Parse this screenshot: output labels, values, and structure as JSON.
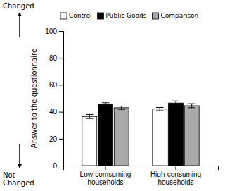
{
  "chart_data": {
    "type": "bar",
    "categories": [
      "Low-comsuming\nhouseholds",
      "High-consuming\nhouseholds"
    ],
    "series": [
      {
        "name": "Control",
        "color": "white",
        "values": [
          36.5,
          42.0
        ],
        "errors": [
          1.5,
          1.2
        ]
      },
      {
        "name": "Public Goods",
        "color": "black",
        "values": [
          45.5,
          46.5
        ],
        "errors": [
          1.2,
          1.5
        ]
      },
      {
        "name": "Comparison",
        "color": "#aaaaaa",
        "values": [
          43.0,
          44.5
        ],
        "errors": [
          1.2,
          1.5
        ]
      }
    ],
    "ylabel": "Answer to the questionnaire",
    "ylim": [
      0,
      100
    ],
    "yticks": [
      0,
      20,
      40,
      60,
      80,
      100
    ],
    "annotations": [
      "Changed",
      "Not\nChanged"
    ],
    "legend": "upper left",
    "grid": false
  }
}
